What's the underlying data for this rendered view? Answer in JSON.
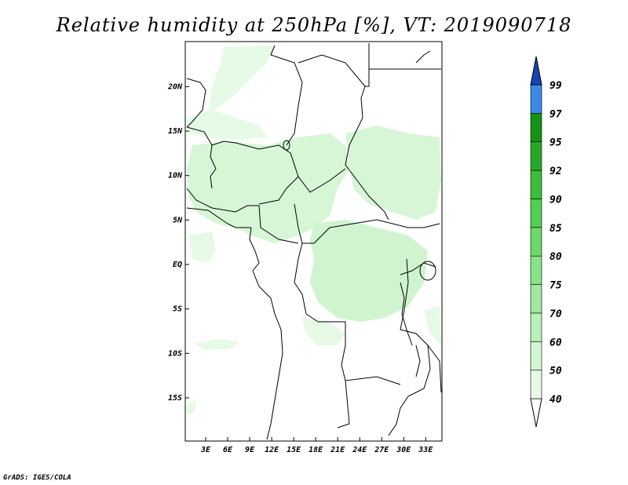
{
  "title": "Relative humidity at 250hPa [%], VT: 2019090718",
  "credit": "GrADS: IGES/COLA",
  "map": {
    "lon_range": [
      0,
      35
    ],
    "lat_range": [
      -20,
      25
    ],
    "lon_ticks": [
      {
        "value": 3,
        "label": "3E"
      },
      {
        "value": 6,
        "label": "6E"
      },
      {
        "value": 9,
        "label": "9E"
      },
      {
        "value": 12,
        "label": "12E"
      },
      {
        "value": 15,
        "label": "15E"
      },
      {
        "value": 18,
        "label": "18E"
      },
      {
        "value": 21,
        "label": "21E"
      },
      {
        "value": 24,
        "label": "24E"
      },
      {
        "value": 27,
        "label": "27E"
      },
      {
        "value": 30,
        "label": "30E"
      },
      {
        "value": 33,
        "label": "33E"
      }
    ],
    "lat_ticks": [
      {
        "value": 20,
        "label": "20N"
      },
      {
        "value": 15,
        "label": "15N"
      },
      {
        "value": 10,
        "label": "10N"
      },
      {
        "value": 5,
        "label": "5N"
      },
      {
        "value": 0,
        "label": "EQ"
      },
      {
        "value": -5,
        "label": "5S"
      },
      {
        "value": -10,
        "label": "10S"
      },
      {
        "value": -15,
        "label": "15S"
      }
    ]
  },
  "colorbar": {
    "levels": [
      "40",
      "50",
      "60",
      "70",
      "75",
      "80",
      "85",
      "90",
      "92",
      "95",
      "97",
      "99"
    ],
    "colors": [
      "#e6fae6",
      "#d2f5d2",
      "#b9efb9",
      "#a0e9a0",
      "#88e288",
      "#6cd96c",
      "#50cf50",
      "#3cbd3c",
      "#28a828",
      "#149414",
      "#3c8ae6",
      "#1e64d2",
      "#1446b4"
    ]
  },
  "colors": {
    "rh_light": "#e6fae6",
    "rh_mid": "#c8f2c8",
    "rh_strong": "#a8e8a8",
    "boundary": "#000000"
  }
}
